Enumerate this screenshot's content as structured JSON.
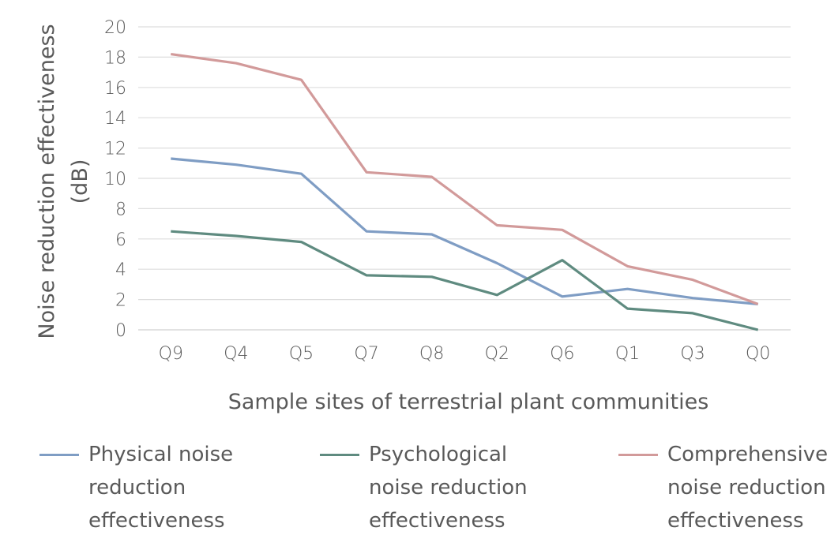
{
  "chart_data": {
    "type": "line",
    "categories": [
      "Q9",
      "Q4",
      "Q5",
      "Q7",
      "Q8",
      "Q2",
      "Q6",
      "Q1",
      "Q3",
      "Q0"
    ],
    "series": [
      {
        "name": "Physical noise reduction effectiveness",
        "color": "#7f9dc4",
        "values": [
          11.3,
          10.9,
          10.3,
          6.5,
          6.3,
          4.4,
          2.2,
          2.7,
          2.1,
          1.7
        ]
      },
      {
        "name": "Psychological noise reduction effectiveness",
        "color": "#5f8b80",
        "values": [
          6.5,
          6.2,
          5.8,
          3.6,
          3.5,
          2.3,
          4.6,
          1.4,
          1.1,
          0.0
        ]
      },
      {
        "name": "Comprehensive noise reduction effectiveness",
        "color": "#d29a9a",
        "values": [
          18.2,
          17.6,
          16.5,
          10.4,
          10.1,
          6.9,
          6.6,
          4.2,
          3.3,
          1.7
        ]
      }
    ],
    "xlabel": "Sample sites of terrestrial plant communities",
    "ylabel": "Noise reduction effectiveness (dB)",
    "ylabel_lines": [
      "Noise reduction effectiveness",
      "(dB)"
    ],
    "ylim": [
      0,
      20
    ],
    "yticks": [
      0,
      2,
      4,
      6,
      8,
      10,
      12,
      14,
      16,
      18,
      20
    ],
    "grid": true,
    "legend_position": "bottom",
    "legend_lines": [
      "Physical noise\nreduction\neffectiveness",
      "Psychological\nnoise reduction\neffectiveness",
      "Comprehensive\nnoise reduction\neffectiveness"
    ]
  }
}
